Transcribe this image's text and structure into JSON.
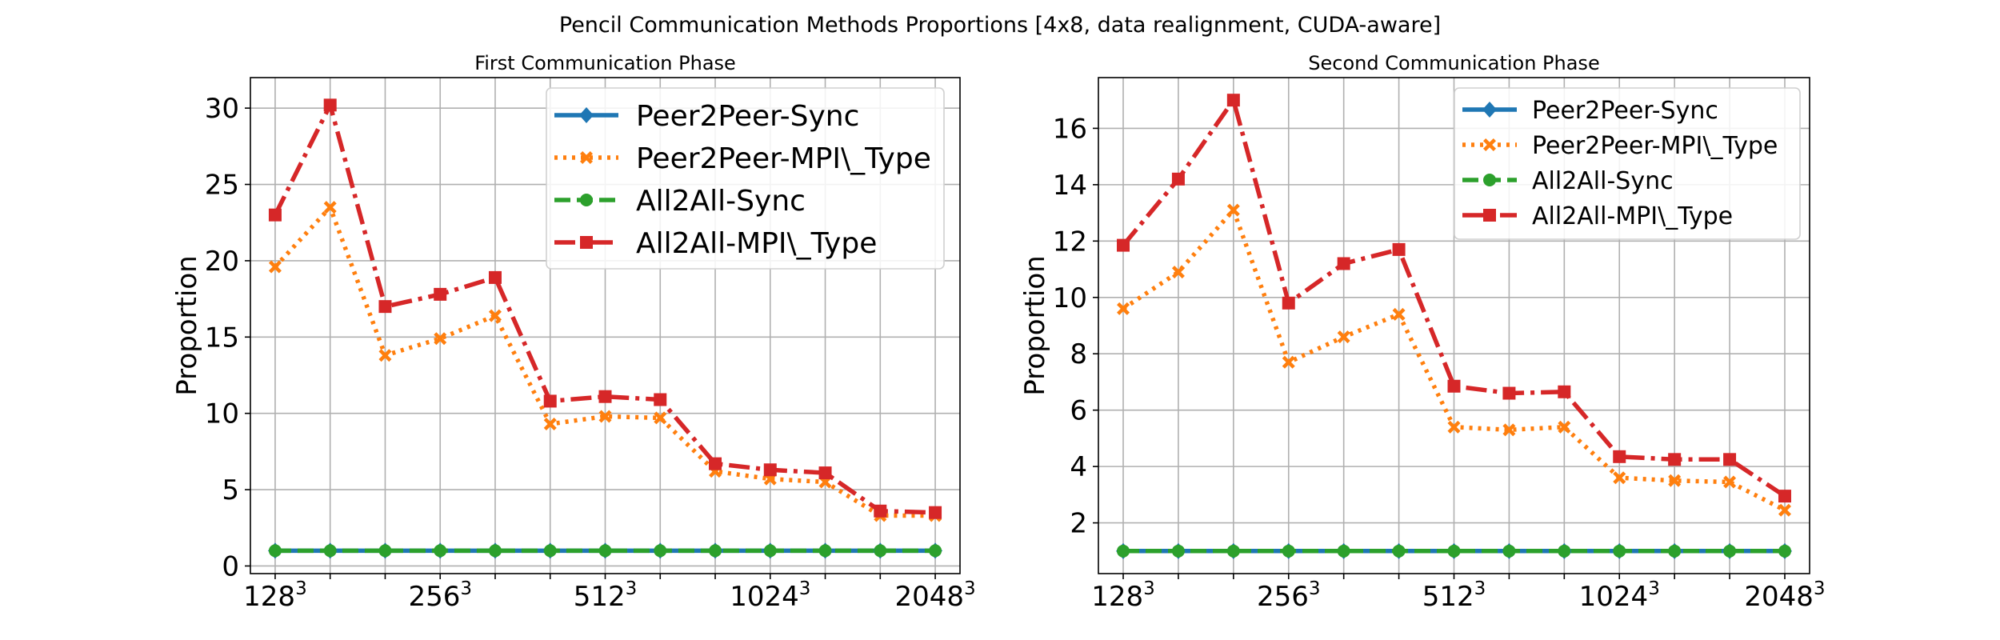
{
  "figure": {
    "title": "Pencil Communication Methods Proportions [4x8, data realignment, CUDA-aware]"
  },
  "colors": {
    "Peer2Peer-Sync": "#1f77b4",
    "Peer2Peer-MPI\\_Type": "#ff7f0e",
    "All2All-Sync": "#2ca02c",
    "All2All-MPI\\_Type": "#d62728",
    "grid": "#b0b0b0"
  },
  "chart_data": [
    {
      "type": "line",
      "title": "First Communication Phase",
      "xlabel": "",
      "ylabel": "Proportion",
      "x": [
        1,
        2,
        3,
        4,
        5,
        6,
        7,
        8,
        9,
        10,
        11,
        12,
        13
      ],
      "xticks": [
        {
          "x": 1,
          "base": "128",
          "exp": "3"
        },
        {
          "x": 4,
          "base": "256",
          "exp": "3"
        },
        {
          "x": 7,
          "base": "512",
          "exp": "3"
        },
        {
          "x": 10,
          "base": "1024",
          "exp": "3"
        },
        {
          "x": 13,
          "base": "2048",
          "exp": "3"
        }
      ],
      "xlim": [
        0.55,
        13.45
      ],
      "ylim": [
        -0.5,
        32
      ],
      "yticks": [
        0,
        5,
        10,
        15,
        20,
        25,
        30
      ],
      "grid": true,
      "legend_position": "upper right",
      "series": [
        {
          "name": "Peer2Peer-Sync",
          "marker": "diamond",
          "style": "solid",
          "values": [
            1.0,
            1.0,
            1.0,
            1.0,
            1.0,
            1.0,
            1.0,
            1.0,
            1.0,
            1.0,
            1.0,
            1.0,
            1.0
          ]
        },
        {
          "name": "Peer2Peer-MPI\\_Type",
          "marker": "x",
          "style": "dotted",
          "values": [
            19.6,
            23.5,
            13.8,
            14.9,
            16.4,
            9.3,
            9.8,
            9.7,
            6.2,
            5.7,
            5.5,
            3.3,
            3.3
          ]
        },
        {
          "name": "All2All-Sync",
          "marker": "circle",
          "style": "dashed",
          "values": [
            1.0,
            1.0,
            1.0,
            1.0,
            1.0,
            1.0,
            1.0,
            1.0,
            1.0,
            1.0,
            1.0,
            1.0,
            1.0
          ]
        },
        {
          "name": "All2All-MPI\\_Type",
          "marker": "square",
          "style": "dashdot",
          "values": [
            23.0,
            30.2,
            17.0,
            17.8,
            18.9,
            10.8,
            11.1,
            10.9,
            6.7,
            6.3,
            6.1,
            3.6,
            3.5
          ]
        }
      ]
    },
    {
      "type": "line",
      "title": "Second Communication Phase",
      "xlabel": "",
      "ylabel": "Proportion",
      "x": [
        1,
        2,
        3,
        4,
        5,
        6,
        7,
        8,
        9,
        10,
        11,
        12,
        13
      ],
      "xticks": [
        {
          "x": 1,
          "base": "128",
          "exp": "3"
        },
        {
          "x": 4,
          "base": "256",
          "exp": "3"
        },
        {
          "x": 7,
          "base": "512",
          "exp": "3"
        },
        {
          "x": 10,
          "base": "1024",
          "exp": "3"
        },
        {
          "x": 13,
          "base": "2048",
          "exp": "3"
        }
      ],
      "xlim": [
        0.55,
        13.45
      ],
      "ylim": [
        0.2,
        17.8
      ],
      "yticks": [
        2,
        4,
        6,
        8,
        10,
        12,
        14,
        16
      ],
      "grid": true,
      "legend_position": "upper right",
      "series": [
        {
          "name": "Peer2Peer-Sync",
          "marker": "diamond",
          "style": "solid",
          "values": [
            1.0,
            1.0,
            1.0,
            1.0,
            1.0,
            1.0,
            1.0,
            1.0,
            1.0,
            1.0,
            1.0,
            1.0,
            1.0
          ]
        },
        {
          "name": "Peer2Peer-MPI\\_Type",
          "marker": "x",
          "style": "dotted",
          "values": [
            9.6,
            10.9,
            13.1,
            7.7,
            8.6,
            9.4,
            5.4,
            5.3,
            5.4,
            3.6,
            3.5,
            3.45,
            2.45
          ]
        },
        {
          "name": "All2All-Sync",
          "marker": "circle",
          "style": "dashed",
          "values": [
            1.0,
            1.0,
            1.0,
            1.0,
            1.0,
            1.0,
            1.0,
            1.0,
            1.0,
            1.0,
            1.0,
            1.0,
            1.0
          ]
        },
        {
          "name": "All2All-MPI\\_Type",
          "marker": "square",
          "style": "dashdot",
          "values": [
            11.85,
            14.2,
            17.0,
            9.8,
            11.2,
            11.7,
            6.85,
            6.6,
            6.65,
            4.35,
            4.25,
            4.25,
            2.95
          ]
        }
      ]
    }
  ]
}
